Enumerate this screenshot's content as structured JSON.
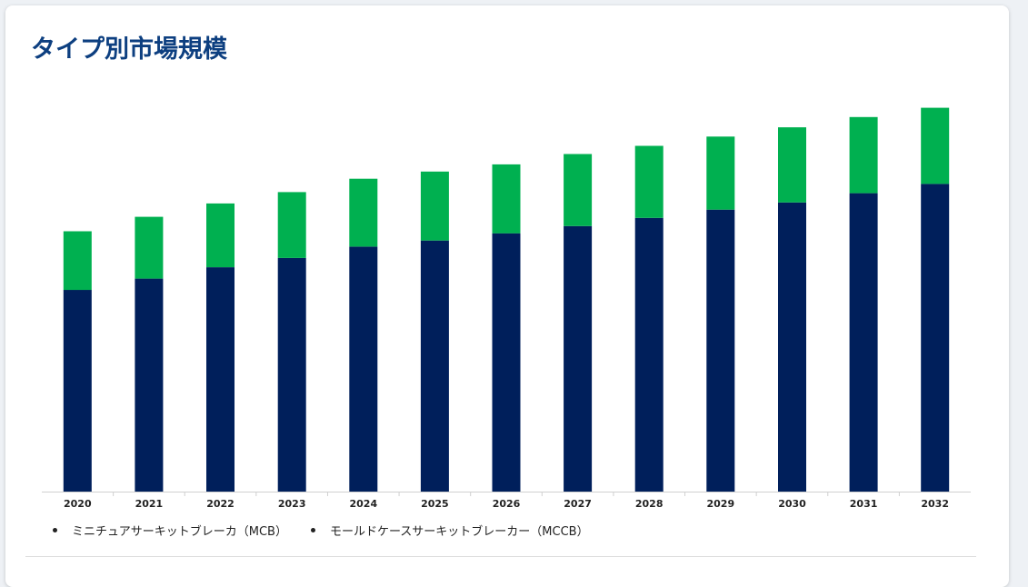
{
  "page": {
    "title": "タイプ別市場規模"
  },
  "chart_data": {
    "type": "bar",
    "stacked": true,
    "categories": [
      "2020",
      "2021",
      "2022",
      "2023",
      "2024",
      "2025",
      "2026",
      "2027",
      "2028",
      "2029",
      "2030",
      "2031",
      "2032"
    ],
    "series": [
      {
        "name": "ミニチュアサーキットブレーカ（MCB）",
        "color": "#001f5b",
        "values": [
          196,
          207,
          218,
          227,
          238,
          244,
          251,
          258,
          266,
          274,
          281,
          290,
          299
        ]
      },
      {
        "name": "モールドケースサーキットブレーカー（MCCB）",
        "color": "#00b050",
        "values": [
          57,
          60,
          62,
          64,
          66,
          67,
          67,
          70,
          70,
          71,
          73,
          74,
          74
        ]
      }
    ],
    "ylim": [
      0,
      400
    ],
    "grid": false,
    "show_y_axis": false,
    "legend_position": "bottom-left"
  }
}
